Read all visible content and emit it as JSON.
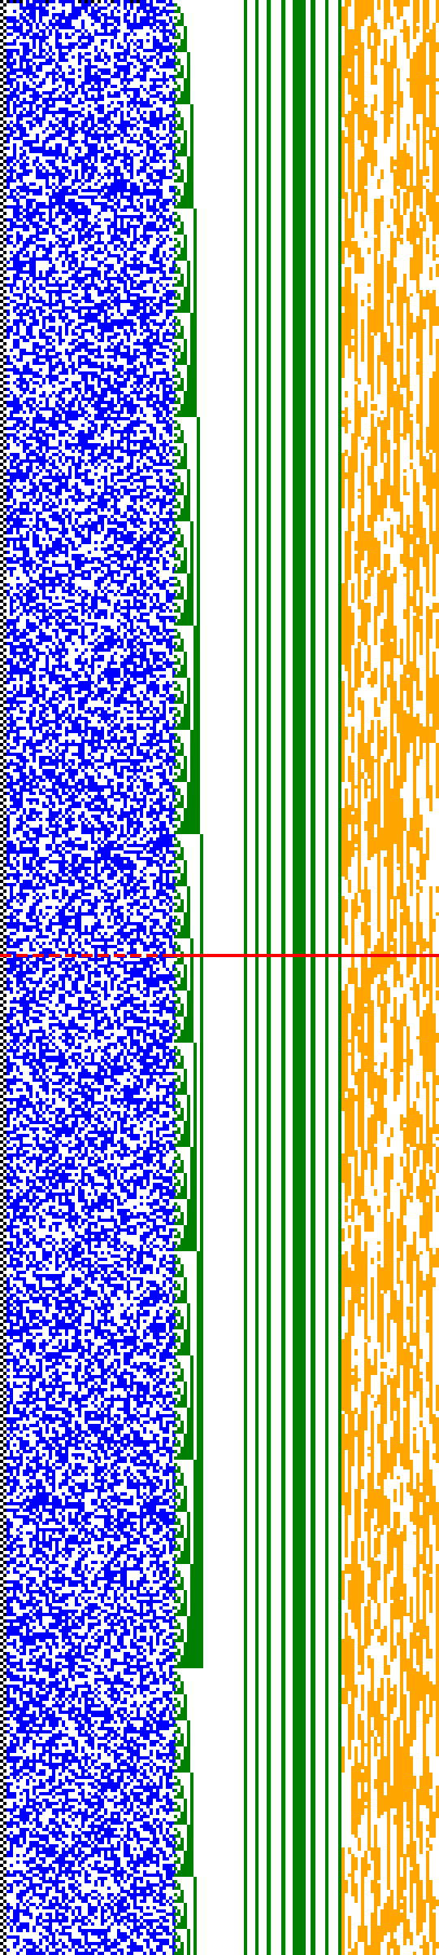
{
  "colors": {
    "background": "#ffffff",
    "ruler": "#000000",
    "bits": "#0000ff",
    "staircase": "#008000",
    "bars": "#008000",
    "noise": "#ffa500",
    "marker": "#ff0000"
  },
  "structure": {
    "regions": [
      "dotted-ruler",
      "random-bit-grid",
      "binary-counter-staircase",
      "vertical-bars",
      "noise-band",
      "red-dashed-marker"
    ],
    "marker_position_fraction": 0.4887,
    "bar_count": 8
  }
}
